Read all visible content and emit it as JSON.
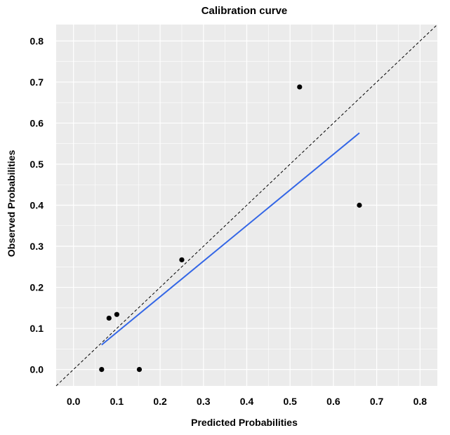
{
  "chart_data": {
    "type": "scatter",
    "title": "Calibration curve",
    "xlabel": "Predicted Probabilities",
    "ylabel": "Observed Probabilities",
    "xlim": [
      -0.04,
      0.84
    ],
    "ylim": [
      -0.04,
      0.84
    ],
    "x_ticks": [
      "0.0",
      "0.1",
      "0.2",
      "0.3",
      "0.4",
      "0.5",
      "0.6",
      "0.7",
      "0.8"
    ],
    "y_ticks": [
      "0.0",
      "0.1",
      "0.2",
      "0.3",
      "0.4",
      "0.5",
      "0.6",
      "0.7",
      "0.8"
    ],
    "grid": true,
    "background_color": "#ebebeb",
    "grid_color": "#ffffff",
    "points": [
      {
        "x": 0.065,
        "y": 0.0
      },
      {
        "x": 0.082,
        "y": 0.125
      },
      {
        "x": 0.1,
        "y": 0.134
      },
      {
        "x": 0.152,
        "y": 0.0
      },
      {
        "x": 0.25,
        "y": 0.267
      },
      {
        "x": 0.522,
        "y": 0.688
      },
      {
        "x": 0.66,
        "y": 0.4
      }
    ],
    "point_color": "#000000",
    "fit_line": {
      "x": [
        0.065,
        0.66
      ],
      "y": [
        0.06,
        0.576
      ],
      "color": "#3366e6"
    },
    "reference_line": {
      "x": [
        -0.04,
        0.84
      ],
      "y": [
        -0.04,
        0.84
      ],
      "color": "#000000",
      "style": "dashed"
    }
  }
}
